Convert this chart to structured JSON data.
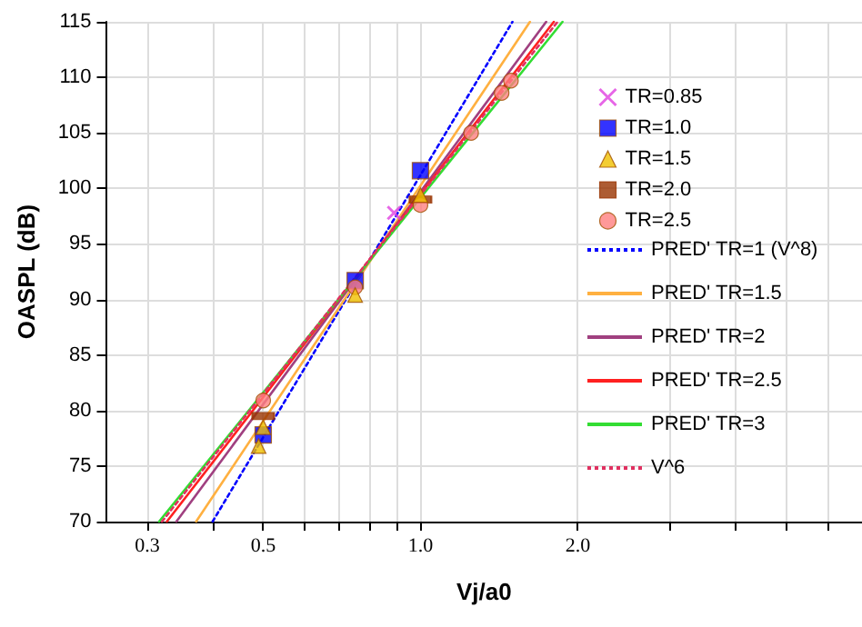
{
  "chart_data": {
    "type": "scatter",
    "xlabel": "Vj/a0",
    "ylabel": "OASPL (dB)",
    "log": "x",
    "grid": true,
    "legend": "right",
    "xlim": [
      0.25,
      7
    ],
    "ylim": [
      70,
      115
    ],
    "xticks": [
      {
        "value": 0.3,
        "label": "0.3"
      },
      {
        "value": 0.4,
        "label": null
      },
      {
        "value": 0.5,
        "label": "0.5"
      },
      {
        "value": 0.6,
        "label": null
      },
      {
        "value": 0.7,
        "label": null
      },
      {
        "value": 0.8,
        "label": null
      },
      {
        "value": 0.9,
        "label": null
      },
      {
        "value": 1,
        "label": "1.0"
      },
      {
        "value": 2,
        "label": "2.0"
      },
      {
        "value": 3,
        "label": null
      },
      {
        "value": 4,
        "label": null
      },
      {
        "value": 5,
        "label": null
      },
      {
        "value": 6,
        "label": null
      }
    ],
    "yticks": [
      70,
      75,
      80,
      85,
      90,
      95,
      100,
      105,
      110,
      115
    ],
    "series": [
      {
        "name": "TR=0.85",
        "marker": "cross",
        "color": "#e040e0",
        "x": [
          0.89
        ],
        "values": [
          97.8
        ]
      },
      {
        "name": "TR=1.0",
        "marker": "square",
        "color": "#0000ff",
        "x": [
          0.5,
          0.75,
          1.0
        ],
        "values": [
          77.8,
          91.7,
          101.6
        ]
      },
      {
        "name": "TR=1.5",
        "marker": "triangle",
        "color": "#f0c000",
        "x": [
          0.49,
          0.5,
          0.75,
          1.0
        ],
        "values": [
          76.8,
          78.5,
          90.4,
          99.4
        ]
      },
      {
        "name": "TR=2.0",
        "marker": "square",
        "color": "#993300",
        "x": [
          0.5,
          0.75,
          1.0
        ],
        "values": [
          79.5,
          null,
          99.0
        ]
      },
      {
        "name": "TR=2.5",
        "marker": "circle",
        "color": "#ff8080",
        "x": [
          0.5,
          0.75,
          1.0,
          1.25,
          1.43,
          1.49
        ],
        "values": [
          80.9,
          91.1,
          98.5,
          105.0,
          108.6,
          109.7
        ]
      },
      {
        "name": "PRED' TR=1 (V^8)",
        "type": "line",
        "marker": "none",
        "line_style": "dotted",
        "color": "#0000ff",
        "x": [
          0.4,
          1.5
        ],
        "values": [
          70,
          115
        ]
      },
      {
        "name": "PRED' TR=1.5",
        "type": "line",
        "marker": "none",
        "line_style": "solid",
        "color": "#ffb040",
        "x": [
          0.372,
          1.62
        ],
        "values": [
          70,
          115
        ]
      },
      {
        "name": "PRED' TR=2",
        "type": "line",
        "marker": "none",
        "line_style": "solid",
        "color": "#a04080",
        "x": [
          0.341,
          1.74
        ],
        "values": [
          70,
          115
        ]
      },
      {
        "name": "PRED' TR=2.5",
        "type": "line",
        "marker": "none",
        "line_style": "solid",
        "color": "#ff2020",
        "x": [
          0.327,
          1.8
        ],
        "values": [
          70,
          115
        ]
      },
      {
        "name": "PRED' TR=3",
        "type": "line",
        "marker": "none",
        "line_style": "solid",
        "color": "#33dd33",
        "x": [
          0.316,
          1.87
        ],
        "values": [
          70,
          115
        ]
      },
      {
        "name": "V^6",
        "type": "line",
        "marker": "none",
        "line_style": "dotted",
        "color": "#e03060",
        "x": [
          0.32,
          1.83
        ],
        "values": [
          70,
          115
        ]
      }
    ]
  }
}
